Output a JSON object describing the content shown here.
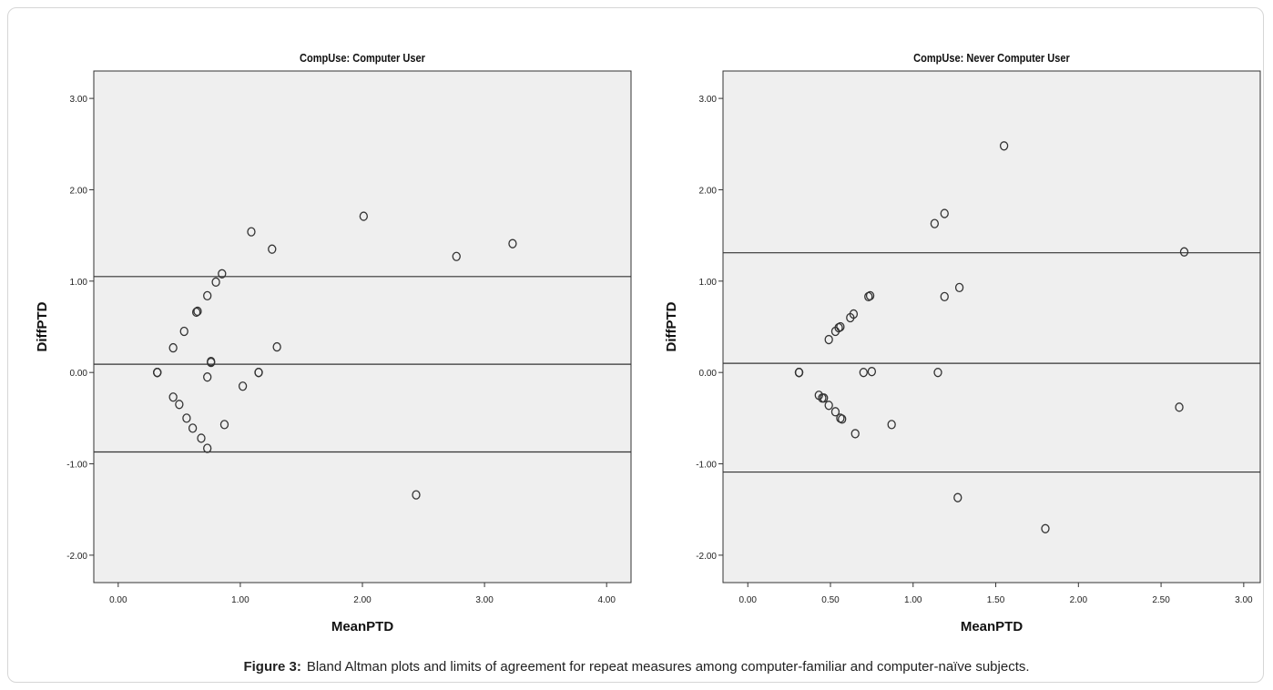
{
  "caption": {
    "label": "Figure 3:",
    "text": "Bland Altman plots and limits of agreement for repeat measures among computer-familiar and computer-naïve subjects."
  },
  "colors": {
    "plot_bg": "#efefef",
    "axis": "#333333",
    "marker": "#333333",
    "ref_line": "#333333"
  },
  "chart_data": [
    {
      "type": "scatter",
      "title": "CompUse: Computer User",
      "xlabel": "MeanPTD",
      "ylabel": "DiffPTD",
      "xlim": [
        -0.2,
        4.2
      ],
      "ylim": [
        -2.3,
        3.3
      ],
      "xticks": [
        0,
        1,
        2,
        3,
        4
      ],
      "xtick_labels": [
        "0.00",
        "1.00",
        "2.00",
        "3.00",
        "4.00"
      ],
      "yticks": [
        -2,
        -1,
        0,
        1,
        2,
        3
      ],
      "ytick_labels": [
        "-2.00",
        "-1.00",
        "0.00",
        "1.00",
        "2.00",
        "3.00"
      ],
      "grid": false,
      "reference_lines": [
        1.05,
        0.09,
        -0.87
      ],
      "points": [
        [
          0.32,
          0.0
        ],
        [
          0.32,
          0.0
        ],
        [
          0.32,
          0.0
        ],
        [
          0.45,
          0.27
        ],
        [
          0.45,
          -0.27
        ],
        [
          0.5,
          -0.35
        ],
        [
          0.54,
          0.45
        ],
        [
          0.56,
          -0.5
        ],
        [
          0.61,
          -0.61
        ],
        [
          0.64,
          0.66
        ],
        [
          0.65,
          0.67
        ],
        [
          0.68,
          -0.72
        ],
        [
          0.73,
          0.84
        ],
        [
          0.73,
          -0.05
        ],
        [
          0.73,
          -0.83
        ],
        [
          0.76,
          0.11
        ],
        [
          0.76,
          0.12
        ],
        [
          0.8,
          0.99
        ],
        [
          0.85,
          1.08
        ],
        [
          0.87,
          -0.57
        ],
        [
          1.02,
          -0.15
        ],
        [
          1.09,
          1.54
        ],
        [
          1.15,
          0.0
        ],
        [
          1.15,
          0.0
        ],
        [
          1.26,
          1.35
        ],
        [
          1.3,
          0.28
        ],
        [
          2.01,
          1.71
        ],
        [
          2.44,
          -1.34
        ],
        [
          2.77,
          1.27
        ],
        [
          3.23,
          1.41
        ]
      ]
    },
    {
      "type": "scatter",
      "title": "CompUse: Never Computer User",
      "xlabel": "MeanPTD",
      "ylabel": "DiffPTD",
      "xlim": [
        -0.15,
        3.1
      ],
      "ylim": [
        -2.3,
        3.3
      ],
      "xticks": [
        0,
        0.5,
        1,
        1.5,
        2,
        2.5,
        3
      ],
      "xtick_labels": [
        "0.00",
        "0.50",
        "1.00",
        "1.50",
        "2.00",
        "2.50",
        "3.00"
      ],
      "yticks": [
        -2,
        -1,
        0,
        1,
        2,
        3
      ],
      "ytick_labels": [
        "-2.00",
        "-1.00",
        "0.00",
        "1.00",
        "2.00",
        "3.00"
      ],
      "grid": false,
      "reference_lines": [
        1.31,
        0.1,
        -1.09
      ],
      "points": [
        [
          0.31,
          0.0
        ],
        [
          0.31,
          0.0
        ],
        [
          0.31,
          0.0
        ],
        [
          0.43,
          -0.25
        ],
        [
          0.45,
          -0.28
        ],
        [
          0.46,
          -0.28
        ],
        [
          0.49,
          -0.36
        ],
        [
          0.49,
          0.36
        ],
        [
          0.53,
          -0.43
        ],
        [
          0.53,
          0.45
        ],
        [
          0.55,
          0.49
        ],
        [
          0.56,
          0.5
        ],
        [
          0.56,
          -0.5
        ],
        [
          0.57,
          -0.51
        ],
        [
          0.62,
          0.6
        ],
        [
          0.64,
          0.64
        ],
        [
          0.65,
          -0.67
        ],
        [
          0.7,
          0.0
        ],
        [
          0.73,
          0.83
        ],
        [
          0.74,
          0.84
        ],
        [
          0.75,
          0.01
        ],
        [
          0.87,
          -0.57
        ],
        [
          1.13,
          1.63
        ],
        [
          1.15,
          0.0
        ],
        [
          1.19,
          1.74
        ],
        [
          1.19,
          0.83
        ],
        [
          1.27,
          -1.37
        ],
        [
          1.28,
          0.93
        ],
        [
          1.55,
          2.48
        ],
        [
          1.8,
          -1.71
        ],
        [
          2.61,
          -0.38
        ],
        [
          2.64,
          1.32
        ]
      ]
    }
  ]
}
